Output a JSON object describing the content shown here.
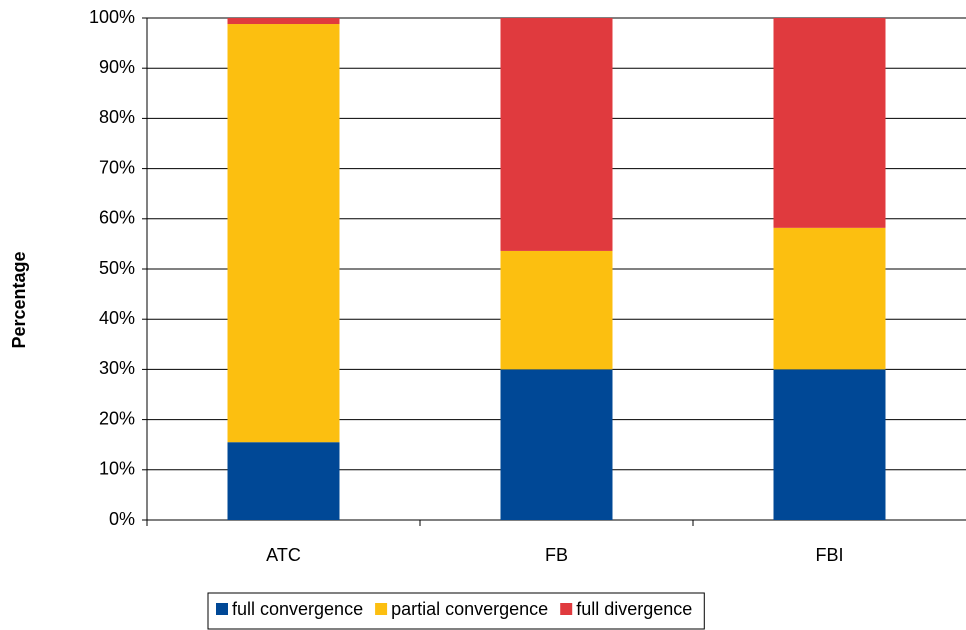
{
  "chart_data": {
    "type": "stacked_bar",
    "y_label": "Percentage",
    "categories": [
      "ATC",
      "FB",
      "FBI"
    ],
    "series": [
      {
        "name": "full convergence",
        "color": "#004896",
        "values": [
          15.5,
          30,
          30
        ]
      },
      {
        "name": "partial convergence",
        "color": "#fcbf10",
        "values": [
          83.3,
          23.6,
          28.2
        ]
      },
      {
        "name": "full divergence",
        "color": "#e03a3e",
        "values": [
          1.2,
          46.4,
          41.8
        ]
      }
    ],
    "ylim": [
      0,
      100
    ],
    "yticks": [
      {
        "value": 0,
        "label": "0%"
      },
      {
        "value": 10,
        "label": "10%"
      },
      {
        "value": 20,
        "label": "20%"
      },
      {
        "value": 30,
        "label": "30%"
      },
      {
        "value": 40,
        "label": "40%"
      },
      {
        "value": 50,
        "label": "50%"
      },
      {
        "value": 60,
        "label": "60%"
      },
      {
        "value": 70,
        "label": "70%"
      },
      {
        "value": 80,
        "label": "80%"
      },
      {
        "value": 90,
        "label": "90%"
      },
      {
        "value": 100,
        "label": "100%"
      }
    ],
    "grid": true,
    "legend": "bottom"
  }
}
